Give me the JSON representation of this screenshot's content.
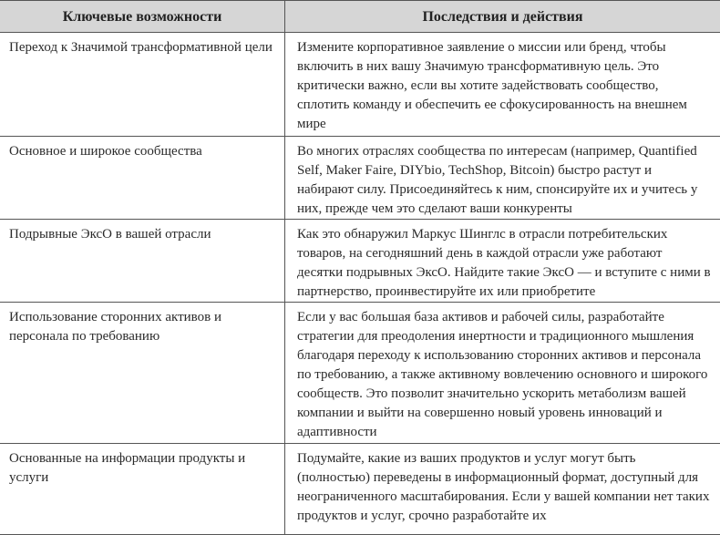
{
  "table": {
    "headers": [
      "Ключевые возможности",
      "Последствия и действия"
    ],
    "rows": [
      {
        "feature": "Переход к Значимой трансформативной цели",
        "action": "Измените корпоративное заявление о миссии или бренд, чтобы включить в них вашу Значимую трансформативную цель. Это критически важно, если вы хотите задействовать сообщество, сплотить команду и обеспечить ее сфокусированность на внешнем мире"
      },
      {
        "feature": "Основное и широкое сообщества",
        "action": "Во многих отраслях сообщества по интересам (например, Quantified Self, Maker Faire, DIYbio, TechShop, Bitcoin) быстро растут и набирают силу. Присоединяйтесь к ним, спонсируйте их и учитесь у них, прежде чем это сделают ваши конкуренты"
      },
      {
        "feature": "Подрывные ЭксО в вашей отрасли",
        "action": "Как это обнаружил Маркус Шинглс в отрасли потребительских товаров, на сегодняшний день в каждой отрасли уже работают десятки подрывных ЭксО. Найдите такие ЭксО — и вступите с ними в партнерство, проинвестируйте их или приобретите"
      },
      {
        "feature": "Использование сторонних активов и персонала по требованию",
        "action": "Если у вас большая база активов и рабочей силы, разработайте стратегии для преодоления инертности и традиционного мышления благодаря переходу к использованию сторонних активов и персонала по требованию, а также активному вовлечению основного и широкого сообществ. Это позволит значительно ускорить метаболизм вашей компании и выйти на совершенно новый уровень инноваций и адаптивности"
      },
      {
        "feature": "Основанные на информации продукты и услуги",
        "action": "Подумайте, какие из ваших продуктов и услуг могут быть (полностью) переведены в информационный формат, доступный для неограниченного масштабирования. Если у вашей компании нет таких продуктов и услуг, срочно разработайте их"
      }
    ]
  }
}
